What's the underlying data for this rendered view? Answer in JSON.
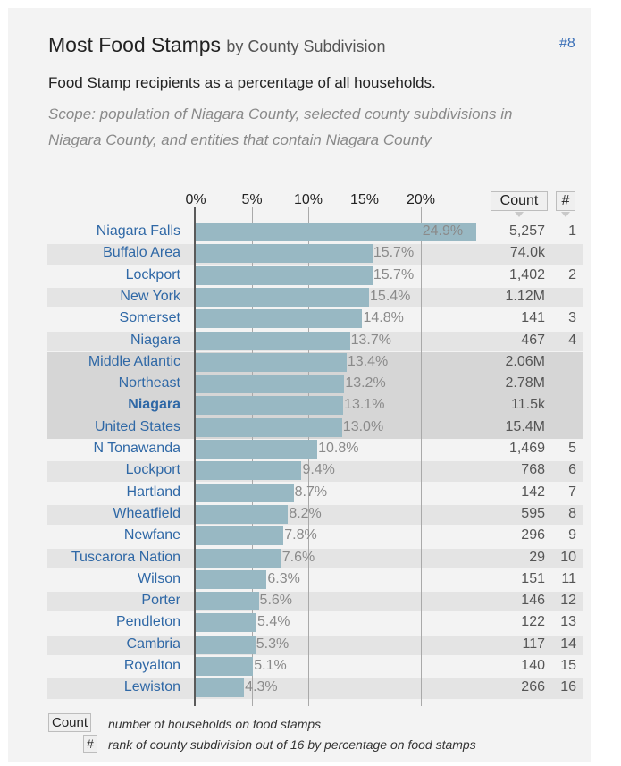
{
  "header": {
    "title": "Most Food Stamps",
    "title_suffix": "by County Subdivision",
    "rank_badge": "#8",
    "description": "Food Stamp recipients as a percentage of all households.",
    "scope": "Scope: population of Niagara County, selected county subdivisions in Niagara County, and entities that contain Niagara County"
  },
  "columns": {
    "count_label": "Count",
    "rank_label": "#"
  },
  "legend": {
    "count_key": "Count",
    "count_text": "number of households on food stamps",
    "rank_key": "#",
    "rank_text": "rank of county subdivision out of 16 by percentage on food stamps"
  },
  "chart_data": {
    "type": "bar",
    "orientation": "horizontal",
    "x_ticks": [
      "0%",
      "5%",
      "10%",
      "15%",
      "20%"
    ],
    "xlim": [
      0,
      25
    ],
    "categories": [
      "Niagara Falls",
      "Buffalo Area",
      "Lockport",
      "New York",
      "Somerset",
      "Niagara",
      "Middle Atlantic",
      "Northeast",
      "Niagara",
      "United States",
      "N Tonawanda",
      "Lockport",
      "Hartland",
      "Wheatfield",
      "Newfane",
      "Tuscarora Nation",
      "Wilson",
      "Porter",
      "Pendleton",
      "Cambria",
      "Royalton",
      "Lewiston"
    ],
    "values": [
      24.9,
      15.7,
      15.7,
      15.4,
      14.8,
      13.7,
      13.4,
      13.2,
      13.1,
      13.0,
      10.8,
      9.4,
      8.7,
      8.2,
      7.8,
      7.6,
      6.3,
      5.6,
      5.4,
      5.3,
      5.1,
      4.3
    ],
    "value_labels": [
      "24.9%",
      "15.7%",
      "15.7%",
      "15.4%",
      "14.8%",
      "13.7%",
      "13.4%",
      "13.2%",
      "13.1%",
      "13.0%",
      "10.8%",
      "9.4%",
      "8.7%",
      "8.2%",
      "7.8%",
      "7.6%",
      "6.3%",
      "5.6%",
      "5.4%",
      "5.3%",
      "5.1%",
      "4.3%"
    ],
    "counts": [
      "5,257",
      "74.0k",
      "1,402",
      "1.12M",
      "141",
      "467",
      "2.06M",
      "2.78M",
      "11.5k",
      "15.4M",
      "1,469",
      "768",
      "142",
      "595",
      "296",
      "29",
      "151",
      "146",
      "122",
      "117",
      "140",
      "266"
    ],
    "ranks": [
      "1",
      "",
      "2",
      "",
      "3",
      "4",
      "",
      "",
      "",
      "",
      "5",
      "6",
      "7",
      "8",
      "9",
      "10",
      "11",
      "12",
      "13",
      "14",
      "15",
      "16"
    ],
    "bold": [
      false,
      false,
      false,
      false,
      false,
      false,
      false,
      false,
      true,
      false,
      false,
      false,
      false,
      false,
      false,
      false,
      false,
      false,
      false,
      false,
      false,
      false
    ],
    "shade": [
      "none",
      "light",
      "none",
      "light",
      "none",
      "light",
      "dark",
      "dark",
      "dark",
      "dark",
      "none",
      "light",
      "none",
      "light",
      "none",
      "light",
      "none",
      "light",
      "none",
      "light",
      "none",
      "light"
    ],
    "colors": {
      "bar": "#98b8c3",
      "label": "#2f68a6"
    }
  }
}
